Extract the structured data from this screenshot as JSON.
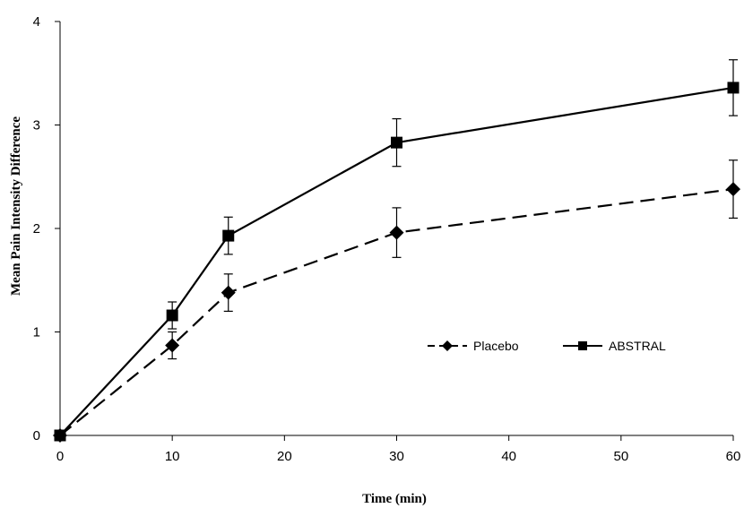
{
  "chart_data": {
    "type": "line",
    "xlabel": "Time (min)",
    "ylabel": "Mean Pain Intensity  Difference",
    "xlim": [
      0,
      60
    ],
    "ylim": [
      0,
      4
    ],
    "x_ticks": [
      0,
      10,
      20,
      30,
      40,
      50,
      60
    ],
    "y_ticks": [
      0,
      1,
      2,
      3,
      4
    ],
    "grid": false,
    "legend_position": "bottom-right",
    "series": [
      {
        "name": "Placebo",
        "marker": "diamond",
        "line_style": "dashed",
        "color": "#000000",
        "x": [
          0,
          10,
          15,
          30,
          60
        ],
        "y": [
          0,
          0.87,
          1.38,
          1.96,
          2.38
        ],
        "error": [
          0,
          0.13,
          0.18,
          0.24,
          0.28
        ]
      },
      {
        "name": "ABSTRAL",
        "marker": "square",
        "line_style": "solid",
        "color": "#000000",
        "x": [
          0,
          10,
          15,
          30,
          60
        ],
        "y": [
          0,
          1.16,
          1.93,
          2.83,
          3.36
        ],
        "error": [
          0,
          0.13,
          0.18,
          0.23,
          0.27
        ]
      }
    ]
  }
}
